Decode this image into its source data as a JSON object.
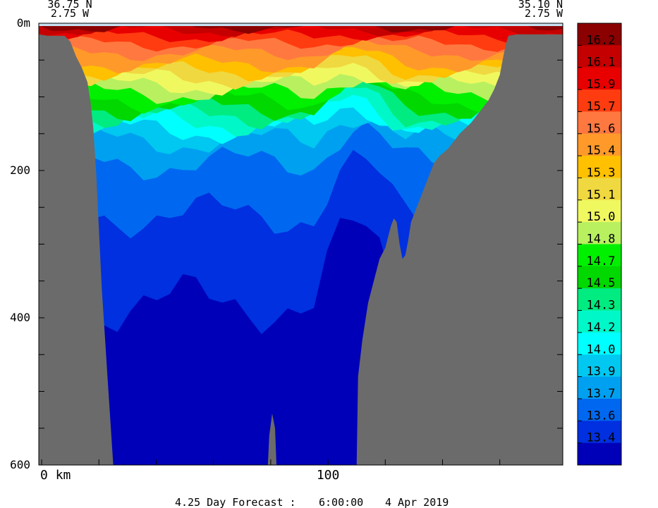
{
  "chart_data": {
    "type": "heatmap",
    "title": "",
    "xlabel": "",
    "ylabel": "",
    "corner_labels": {
      "left_lat": "36.75 N",
      "left_lon": "2.75 W",
      "right_lat": "35.10 N",
      "right_lon": "2.75 W"
    },
    "x_unit": "km",
    "xlim": [
      -1,
      182
    ],
    "ylim": [
      600,
      0
    ],
    "x_tick_labels": [
      {
        "value": 0,
        "label": "0 km"
      },
      {
        "value": 100,
        "label": "100"
      }
    ],
    "x_minor_ticks": [
      20,
      40,
      60,
      80,
      120,
      140,
      160
    ],
    "y_tick_labels": [
      {
        "value": 0,
        "label": "0m"
      },
      {
        "value": 200,
        "label": "200"
      },
      {
        "value": 400,
        "label": "400"
      },
      {
        "value": 600,
        "label": "600"
      }
    ],
    "y_minor_ticks": [
      50,
      100,
      150,
      250,
      300,
      350,
      450,
      500,
      550
    ],
    "colorbar": {
      "labels": [
        "16.2",
        "16.1",
        "15.9",
        "15.7",
        "15.6",
        "15.4",
        "15.3",
        "15.1",
        "15.0",
        "14.8",
        "14.7",
        "14.5",
        "14.3",
        "14.2",
        "14.0",
        "13.9",
        "13.7",
        "13.6",
        "13.4"
      ],
      "colors": [
        "#8b0000",
        "#c40000",
        "#e80000",
        "#ff3c10",
        "#ff7840",
        "#ff9a2a",
        "#ffc000",
        "#f0d840",
        "#f0f860",
        "#b8f060",
        "#00f000",
        "#00d800",
        "#00ec80",
        "#00f8c8",
        "#00ffff",
        "#00c8f0",
        "#00a0f0",
        "#0068f0",
        "#0030e0",
        "#0000b8"
      ]
    },
    "bathymetry": {
      "left": [
        [
          -1,
          15
        ],
        [
          2,
          17
        ],
        [
          8,
          17
        ],
        [
          10,
          25
        ],
        [
          12,
          45
        ],
        [
          14,
          60
        ],
        [
          16,
          80
        ],
        [
          17,
          105
        ],
        [
          18,
          140
        ],
        [
          19,
          200
        ],
        [
          20,
          280
        ],
        [
          21,
          360
        ],
        [
          22,
          420
        ],
        [
          23,
          480
        ],
        [
          24,
          540
        ],
        [
          25,
          600
        ]
      ],
      "right": [
        [
          110,
          600
        ],
        [
          110.5,
          480
        ],
        [
          112,
          430
        ],
        [
          114,
          380
        ],
        [
          116,
          350
        ],
        [
          118,
          320
        ],
        [
          120,
          305
        ],
        [
          121,
          290
        ],
        [
          122,
          275
        ],
        [
          123,
          265
        ],
        [
          124,
          270
        ],
        [
          125,
          300
        ],
        [
          126,
          320
        ],
        [
          127,
          315
        ],
        [
          128,
          295
        ],
        [
          129,
          270
        ],
        [
          131,
          250
        ],
        [
          134,
          220
        ],
        [
          137,
          190
        ],
        [
          139,
          180
        ],
        [
          142,
          170
        ],
        [
          146,
          150
        ],
        [
          150,
          135
        ],
        [
          153,
          120
        ],
        [
          156,
          105
        ],
        [
          158,
          90
        ],
        [
          160,
          70
        ],
        [
          161,
          50
        ],
        [
          162,
          30
        ],
        [
          163,
          17
        ],
        [
          166,
          15
        ],
        [
          182,
          15
        ]
      ],
      "seamount": [
        [
          79,
          600
        ],
        [
          79.5,
          560
        ],
        [
          80.5,
          530
        ],
        [
          81.5,
          550
        ],
        [
          82,
          600
        ]
      ]
    },
    "notes": [
      "0m",
      "200",
      "400",
      "600"
    ]
  },
  "footer": {
    "forecast_label": "4.25 Day Forecast :",
    "time": "6:00:00",
    "date": "4 Apr 2019"
  }
}
